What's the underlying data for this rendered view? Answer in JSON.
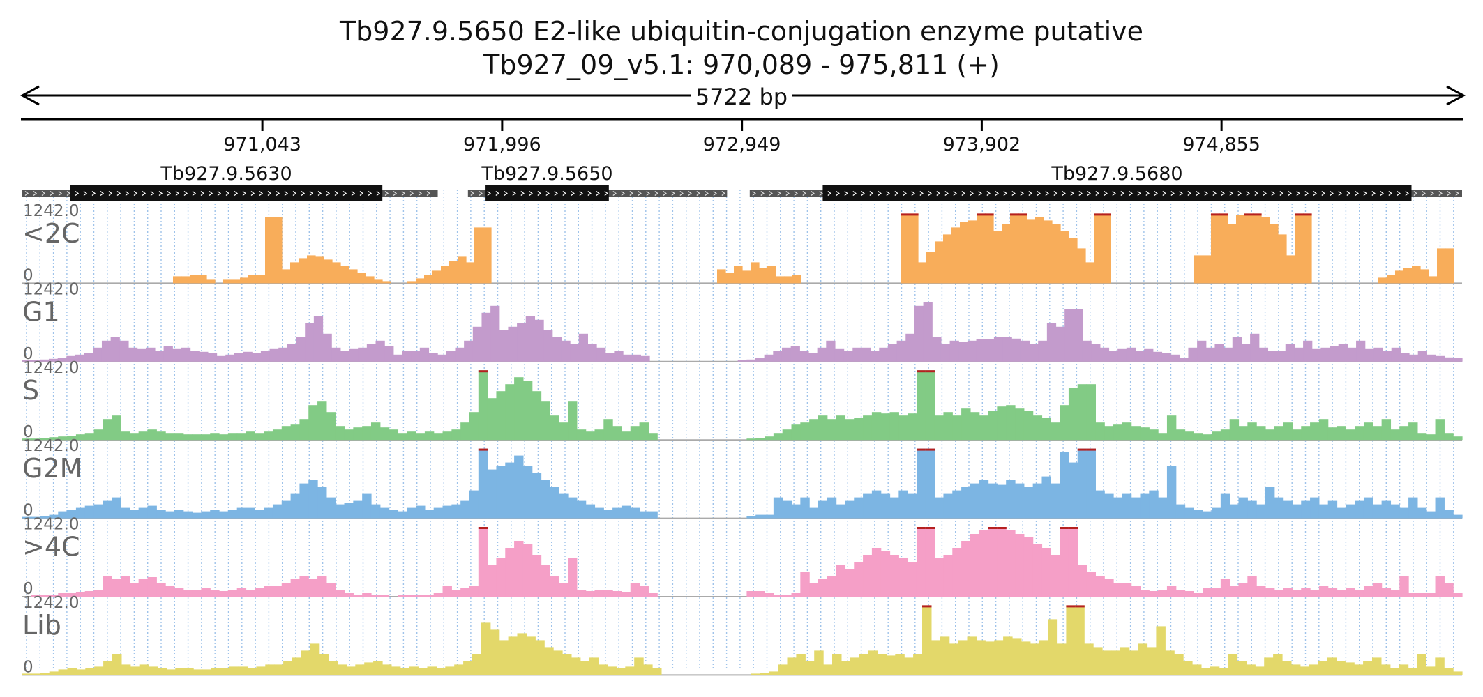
{
  "title": {
    "line1": "Tb927.9.5650  E2-like ubiquitin-conjugation enzyme  putative",
    "line2": "Tb927_09_v5.1: 970,089 - 975,811 (+)"
  },
  "span_label": "5722 bp",
  "chart_data": {
    "type": "area",
    "x_range": [
      970089,
      975811
    ],
    "ticks": [
      "971,043",
      "971,996",
      "972,949",
      "973,902",
      "974,855"
    ],
    "tick_positions": [
      971043,
      971996,
      972949,
      973902,
      974855
    ],
    "genes": [
      {
        "name": "Tb927.9.5630",
        "start": 970089,
        "cds_start": 970280,
        "cds_end": 971520,
        "end": 971740
      },
      {
        "name": "Tb927.9.5650",
        "start": 971860,
        "cds_start": 971930,
        "cds_end": 972420,
        "end": 972890
      },
      {
        "name": "Tb927.9.5680",
        "start": 972980,
        "cds_start": 973270,
        "cds_end": 975610,
        "end": 975811
      }
    ],
    "y_max_label": "1242.0",
    "y_min_label": "0",
    "series": [
      {
        "name": "<2C",
        "color": "#f8ad5a",
        "profile": [
          0,
          0,
          0,
          0,
          0,
          0,
          0,
          0,
          0,
          0,
          0,
          0,
          0,
          0,
          0,
          0,
          0,
          0,
          0.1,
          0.1,
          0.12,
          0.12,
          0.05,
          0,
          0.05,
          0.05,
          0.08,
          0.12,
          0.12,
          0.95,
          0.95,
          0.2,
          0.3,
          0.36,
          0.4,
          0.38,
          0.34,
          0.3,
          0.25,
          0.2,
          0.15,
          0.1,
          0.05,
          0.03,
          0,
          0,
          0.03,
          0.07,
          0.12,
          0.18,
          0.25,
          0.32,
          0.38,
          0.3,
          0.8,
          0.8,
          0,
          0,
          0,
          0,
          0,
          0,
          0,
          0,
          0,
          0,
          0,
          0,
          0,
          0,
          0,
          0,
          0,
          0,
          0,
          0,
          0,
          0,
          0,
          0,
          0,
          0,
          0,
          0.2,
          0.15,
          0.25,
          0.18,
          0.3,
          0.22,
          0.25,
          0.1,
          0.1,
          0.12,
          0,
          0,
          0,
          0,
          0,
          0,
          0,
          0,
          0,
          0,
          0,
          0,
          1.0,
          1.0,
          0.3,
          0.45,
          0.6,
          0.7,
          0.8,
          0.88,
          0.9,
          1.0,
          1.0,
          0.75,
          0.85,
          1.0,
          1.0,
          0.92,
          0.95,
          0.9,
          0.85,
          0.75,
          0.65,
          0.5,
          0.3,
          1.0,
          1.0,
          0,
          0,
          0,
          0,
          0,
          0,
          0,
          0,
          0,
          0,
          0.4,
          0.4,
          1.0,
          1.0,
          0.85,
          0.98,
          1.0,
          1.0,
          0.95,
          0.85,
          0.7,
          0.4,
          1.0,
          1.0,
          0,
          0,
          0,
          0,
          0,
          0,
          0,
          0,
          0.08,
          0.12,
          0.18,
          0.22,
          0.25,
          0.2,
          0.1,
          0.5,
          0.5,
          0
        ]
      },
      {
        "name": "G1",
        "color": "#c39bcc",
        "profile": [
          0.02,
          0.02,
          0.03,
          0.04,
          0.05,
          0.08,
          0.1,
          0.12,
          0.2,
          0.3,
          0.35,
          0.3,
          0.2,
          0.18,
          0.2,
          0.15,
          0.22,
          0.18,
          0.2,
          0.15,
          0.14,
          0.12,
          0.08,
          0.1,
          0.12,
          0.14,
          0.12,
          0.15,
          0.18,
          0.2,
          0.25,
          0.35,
          0.55,
          0.65,
          0.4,
          0.2,
          0.15,
          0.18,
          0.2,
          0.25,
          0.3,
          0.22,
          0.1,
          0.15,
          0.15,
          0.2,
          0.12,
          0.1,
          0.15,
          0.2,
          0.3,
          0.5,
          0.7,
          0.8,
          0.45,
          0.5,
          0.55,
          0.65,
          0.6,
          0.45,
          0.35,
          0.3,
          0.25,
          0.4,
          0.25,
          0.2,
          0.12,
          0.15,
          0.1,
          0.1,
          0.08,
          0,
          0,
          0,
          0,
          0,
          0,
          0,
          0,
          0,
          0,
          0.02,
          0.03,
          0.05,
          0.1,
          0.15,
          0.2,
          0.22,
          0.15,
          0.12,
          0.2,
          0.3,
          0.18,
          0.15,
          0.2,
          0.2,
          0.15,
          0.2,
          0.25,
          0.3,
          0.4,
          0.8,
          0.85,
          0.35,
          0.25,
          0.3,
          0.28,
          0.3,
          0.32,
          0.32,
          0.35,
          0.35,
          0.33,
          0.3,
          0.25,
          0.3,
          0.55,
          0.5,
          0.75,
          0.75,
          0.3,
          0.25,
          0.2,
          0.15,
          0.18,
          0.2,
          0.15,
          0.18,
          0.14,
          0.12,
          0.1,
          0.05,
          0.2,
          0.3,
          0.2,
          0.25,
          0.2,
          0.35,
          0.25,
          0.4,
          0.2,
          0.15,
          0.15,
          0.25,
          0.2,
          0.3,
          0.18,
          0.2,
          0.22,
          0.25,
          0.2,
          0.3,
          0.18,
          0.2,
          0.15,
          0.2,
          0.12,
          0.1,
          0.15,
          0.1,
          0.08,
          0.06,
          0.05
        ]
      },
      {
        "name": "S",
        "color": "#82cb85",
        "profile": [
          0.02,
          0.02,
          0.03,
          0.04,
          0.05,
          0.06,
          0.08,
          0.1,
          0.15,
          0.3,
          0.35,
          0.12,
          0.1,
          0.12,
          0.15,
          0.12,
          0.1,
          0.1,
          0.08,
          0.08,
          0.08,
          0.1,
          0.08,
          0.1,
          0.1,
          0.12,
          0.1,
          0.12,
          0.15,
          0.2,
          0.22,
          0.3,
          0.5,
          0.55,
          0.4,
          0.2,
          0.15,
          0.18,
          0.2,
          0.25,
          0.18,
          0.15,
          0.1,
          0.12,
          0.1,
          0.12,
          0.1,
          0.12,
          0.15,
          0.25,
          0.4,
          1.0,
          0.6,
          0.7,
          0.8,
          0.9,
          0.85,
          0.7,
          0.55,
          0.35,
          0.25,
          0.55,
          0.15,
          0.12,
          0.15,
          0.3,
          0.2,
          0.12,
          0.2,
          0.25,
          0.1,
          0,
          0,
          0,
          0,
          0,
          0,
          0,
          0,
          0,
          0,
          0.02,
          0.03,
          0.05,
          0.1,
          0.15,
          0.22,
          0.25,
          0.3,
          0.35,
          0.3,
          0.35,
          0.3,
          0.32,
          0.35,
          0.4,
          0.38,
          0.4,
          0.35,
          0.38,
          1.0,
          1.0,
          0.35,
          0.4,
          0.35,
          0.45,
          0.4,
          0.35,
          0.42,
          0.48,
          0.5,
          0.45,
          0.42,
          0.35,
          0.32,
          0.25,
          0.5,
          0.75,
          0.8,
          0.8,
          0.25,
          0.2,
          0.22,
          0.25,
          0.2,
          0.18,
          0.15,
          0.1,
          0.35,
          0.15,
          0.12,
          0.1,
          0.08,
          0.12,
          0.15,
          0.3,
          0.2,
          0.25,
          0.2,
          0.15,
          0.2,
          0.25,
          0.15,
          0.2,
          0.25,
          0.3,
          0.18,
          0.2,
          0.15,
          0.2,
          0.25,
          0.2,
          0.3,
          0.15,
          0.2,
          0.25,
          0.1,
          0.08,
          0.3,
          0.1,
          0.05
        ]
      },
      {
        "name": "G2M",
        "color": "#7cb5e3",
        "profile": [
          0.02,
          0.02,
          0.03,
          0.05,
          0.1,
          0.12,
          0.15,
          0.18,
          0.2,
          0.25,
          0.3,
          0.15,
          0.12,
          0.15,
          0.18,
          0.12,
          0.1,
          0.12,
          0.1,
          0.08,
          0.1,
          0.12,
          0.1,
          0.12,
          0.15,
          0.15,
          0.12,
          0.15,
          0.2,
          0.25,
          0.35,
          0.5,
          0.55,
          0.45,
          0.3,
          0.2,
          0.22,
          0.25,
          0.35,
          0.2,
          0.15,
          0.12,
          0.1,
          0.15,
          0.18,
          0.12,
          0.15,
          0.18,
          0.2,
          0.25,
          0.4,
          1.0,
          0.7,
          0.75,
          0.8,
          0.9,
          0.75,
          0.65,
          0.55,
          0.45,
          0.35,
          0.3,
          0.25,
          0.2,
          0.15,
          0.12,
          0.15,
          0.18,
          0.15,
          0.1,
          0.1,
          0,
          0,
          0,
          0,
          0,
          0,
          0,
          0,
          0,
          0,
          0.03,
          0.05,
          0.05,
          0.3,
          0.25,
          0.2,
          0.3,
          0.15,
          0.25,
          0.3,
          0.2,
          0.25,
          0.3,
          0.35,
          0.4,
          0.35,
          0.3,
          0.4,
          0.35,
          1.0,
          1.0,
          0.3,
          0.35,
          0.4,
          0.45,
          0.5,
          0.55,
          0.5,
          0.48,
          0.55,
          0.5,
          0.45,
          0.5,
          0.6,
          0.5,
          0.95,
          0.8,
          1.0,
          1.0,
          0.4,
          0.35,
          0.3,
          0.35,
          0.3,
          0.35,
          0.4,
          0.3,
          0.75,
          0.2,
          0.15,
          0.12,
          0.1,
          0.15,
          0.35,
          0.2,
          0.3,
          0.25,
          0.2,
          0.45,
          0.3,
          0.25,
          0.2,
          0.25,
          0.3,
          0.2,
          0.25,
          0.15,
          0.2,
          0.25,
          0.3,
          0.2,
          0.25,
          0.2,
          0.15,
          0.3,
          0.15,
          0.1,
          0.3,
          0.12,
          0.05
        ]
      },
      {
        "name": ">4C",
        "color": "#f59fc7",
        "profile": [
          0,
          0.02,
          0.02,
          0.03,
          0.05,
          0.05,
          0.06,
          0.08,
          0.1,
          0.3,
          0.25,
          0.3,
          0.2,
          0.25,
          0.28,
          0.2,
          0.15,
          0.12,
          0.1,
          0.1,
          0.12,
          0.1,
          0.08,
          0.1,
          0.12,
          0.1,
          0.12,
          0.15,
          0.15,
          0.2,
          0.25,
          0.3,
          0.25,
          0.3,
          0.2,
          0.1,
          0.05,
          0.03,
          0.05,
          0.02,
          0.02,
          0,
          0.02,
          0.02,
          0.02,
          0.02,
          0.05,
          0.15,
          0.1,
          0.12,
          0.15,
          1.0,
          0.45,
          0.55,
          0.7,
          0.8,
          0.75,
          0.6,
          0.45,
          0.3,
          0.2,
          0.55,
          0.1,
          0.08,
          0.1,
          0.1,
          0.08,
          0.06,
          0.2,
          0.15,
          0.05,
          0,
          0,
          0,
          0,
          0,
          0,
          0,
          0,
          0,
          0,
          0.08,
          0.08,
          0.05,
          0.03,
          0.03,
          0.05,
          0.35,
          0.2,
          0.25,
          0.3,
          0.45,
          0.4,
          0.5,
          0.6,
          0.7,
          0.65,
          0.6,
          0.55,
          0.5,
          1.0,
          1.0,
          0.55,
          0.6,
          0.7,
          0.8,
          0.9,
          0.95,
          1.0,
          1.0,
          0.95,
          0.9,
          0.85,
          0.75,
          0.7,
          0.6,
          1.0,
          1.0,
          0.45,
          0.35,
          0.3,
          0.25,
          0.2,
          0.2,
          0.15,
          0.1,
          0.08,
          0.1,
          0.15,
          0.1,
          0.08,
          0.05,
          0.12,
          0.12,
          0.25,
          0.15,
          0.2,
          0.3,
          0.15,
          0.12,
          0.1,
          0.12,
          0.1,
          0.12,
          0.1,
          0.15,
          0.12,
          0.1,
          0.12,
          0.1,
          0.15,
          0.2,
          0.12,
          0.1,
          0.3,
          0.05,
          0.05,
          0.05,
          0.3,
          0.2,
          0.05
        ]
      },
      {
        "name": "Lib",
        "color": "#e3d86a",
        "profile": [
          0.02,
          0.02,
          0.03,
          0.05,
          0.08,
          0.1,
          0.08,
          0.1,
          0.12,
          0.2,
          0.3,
          0.15,
          0.12,
          0.15,
          0.12,
          0.1,
          0.08,
          0.1,
          0.1,
          0.08,
          0.08,
          0.1,
          0.1,
          0.12,
          0.12,
          0.1,
          0.12,
          0.15,
          0.15,
          0.2,
          0.25,
          0.35,
          0.45,
          0.3,
          0.2,
          0.15,
          0.12,
          0.15,
          0.18,
          0.2,
          0.15,
          0.12,
          0.1,
          0.12,
          0.1,
          0.12,
          0.1,
          0.12,
          0.15,
          0.2,
          0.3,
          0.75,
          0.65,
          0.5,
          0.55,
          0.6,
          0.55,
          0.5,
          0.4,
          0.35,
          0.3,
          0.25,
          0.2,
          0.25,
          0.15,
          0.12,
          0.1,
          0.12,
          0.25,
          0.15,
          0.1,
          0,
          0,
          0,
          0,
          0,
          0,
          0,
          0,
          0,
          0,
          0.02,
          0.03,
          0.05,
          0.15,
          0.25,
          0.3,
          0.2,
          0.35,
          0.15,
          0.3,
          0.2,
          0.25,
          0.3,
          0.35,
          0.3,
          0.28,
          0.3,
          0.25,
          0.3,
          1.0,
          0.5,
          0.55,
          0.45,
          0.5,
          0.55,
          0.5,
          0.48,
          0.5,
          0.55,
          0.52,
          0.48,
          0.45,
          0.5,
          0.8,
          0.45,
          1.0,
          1.0,
          0.45,
          0.4,
          0.35,
          0.35,
          0.4,
          0.35,
          0.45,
          0.4,
          0.7,
          0.35,
          0.3,
          0.2,
          0.15,
          0.1,
          0.12,
          0.1,
          0.3,
          0.2,
          0.15,
          0.12,
          0.25,
          0.3,
          0.2,
          0.15,
          0.12,
          0.15,
          0.2,
          0.25,
          0.2,
          0.18,
          0.15,
          0.2,
          0.25,
          0.15,
          0.1,
          0.15,
          0.1,
          0.3,
          0.12,
          0.25,
          0.1,
          0.05
        ]
      }
    ]
  }
}
